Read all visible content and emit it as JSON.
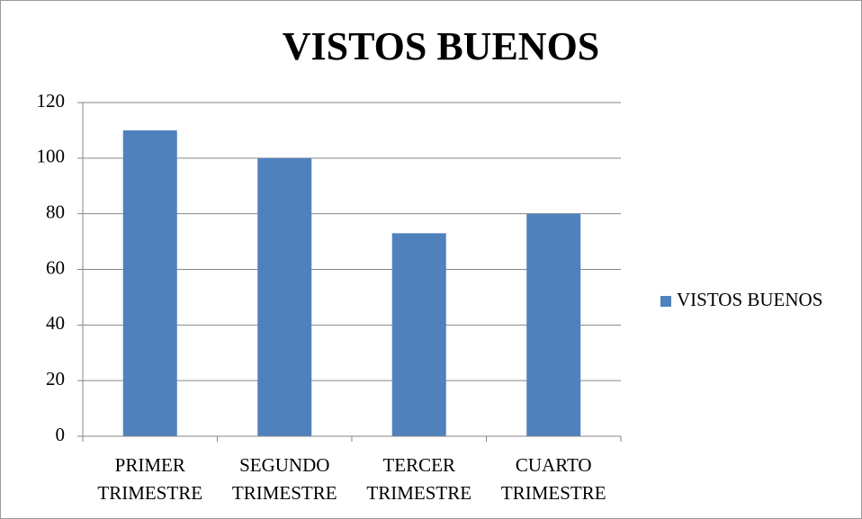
{
  "chart_data": {
    "type": "bar",
    "title": "VISTOS BUENOS",
    "categories": [
      "PRIMER TRIMESTRE",
      "SEGUNDO TRIMESTRE",
      "TERCER TRIMESTRE",
      "CUARTO TRIMESTRE"
    ],
    "series": [
      {
        "name": "VISTOS BUENOS",
        "color": "#4f81bd",
        "values": [
          110,
          100,
          73,
          80
        ]
      }
    ],
    "ylim": [
      0,
      120
    ],
    "yticks": [
      0,
      20,
      40,
      60,
      80,
      100,
      120
    ],
    "grid": true,
    "legend": "right"
  }
}
